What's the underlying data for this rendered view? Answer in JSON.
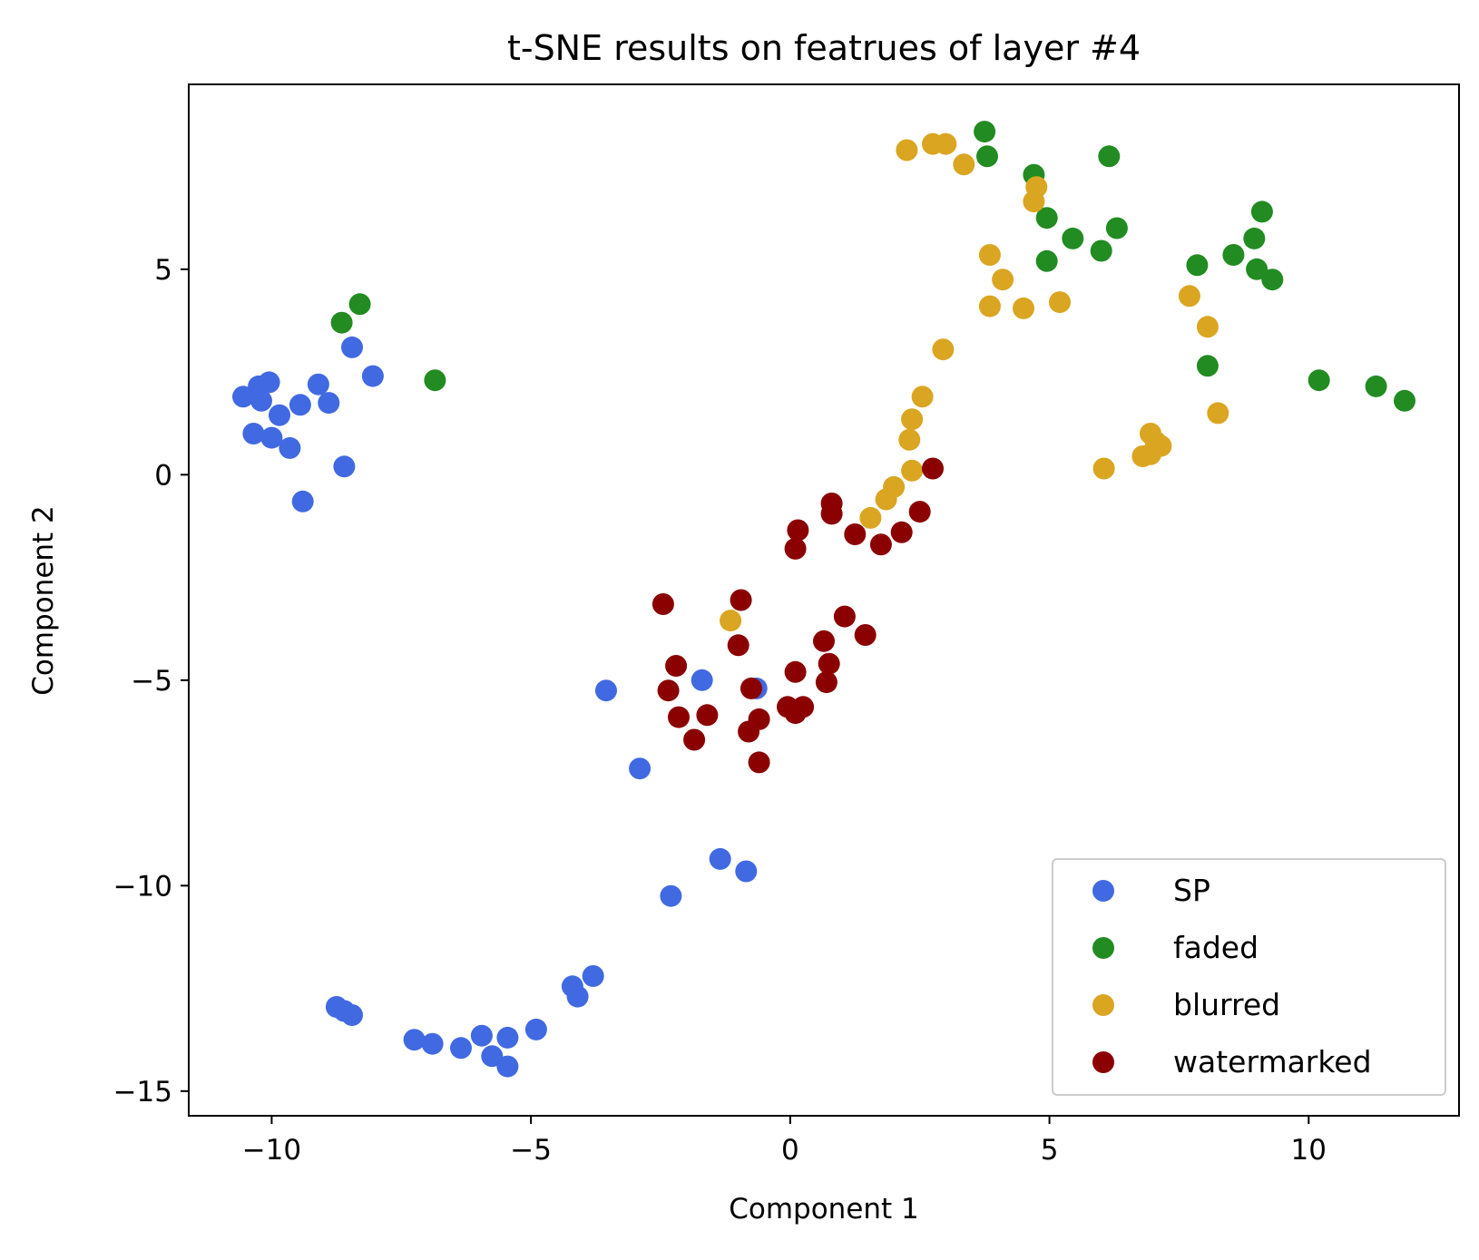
{
  "chart_data": {
    "type": "scatter",
    "title": "t-SNE results on featrues of layer #4",
    "xlabel": "Component 1",
    "ylabel": "Component 2",
    "xlim": [
      -11.6,
      12.9
    ],
    "ylim": [
      -15.6,
      9.5
    ],
    "xticks": [
      {
        "value": -10,
        "label": "−10"
      },
      {
        "value": -5,
        "label": "−5"
      },
      {
        "value": 0,
        "label": "0"
      },
      {
        "value": 5,
        "label": "5"
      },
      {
        "value": 10,
        "label": "10"
      }
    ],
    "yticks": [
      {
        "value": 5,
        "label": "5"
      },
      {
        "value": 0,
        "label": "0"
      },
      {
        "value": -5,
        "label": "−5"
      },
      {
        "value": -10,
        "label": "−10"
      },
      {
        "value": -15,
        "label": "−15"
      }
    ],
    "grid": false,
    "legend_position": "bottom-right",
    "series": [
      {
        "name": "SP",
        "color": "#4169E1",
        "points": [
          [
            -10.55,
            1.9
          ],
          [
            -10.25,
            2.15
          ],
          [
            -10.05,
            2.25
          ],
          [
            -10.2,
            1.8
          ],
          [
            -9.85,
            1.45
          ],
          [
            -9.45,
            1.7
          ],
          [
            -9.1,
            2.2
          ],
          [
            -8.9,
            1.75
          ],
          [
            -8.45,
            3.1
          ],
          [
            -8.05,
            2.4
          ],
          [
            -10.35,
            1.0
          ],
          [
            -10.0,
            0.9
          ],
          [
            -9.65,
            0.65
          ],
          [
            -8.6,
            0.2
          ],
          [
            -9.4,
            -0.65
          ],
          [
            -3.55,
            -5.25
          ],
          [
            -1.7,
            -5.0
          ],
          [
            -0.65,
            -5.2
          ],
          [
            -2.9,
            -7.15
          ],
          [
            -1.35,
            -9.35
          ],
          [
            -0.85,
            -9.65
          ],
          [
            -2.3,
            -10.25
          ],
          [
            -3.8,
            -12.2
          ],
          [
            -4.2,
            -12.45
          ],
          [
            -4.1,
            -12.7
          ],
          [
            -8.75,
            -12.95
          ],
          [
            -8.6,
            -13.05
          ],
          [
            -8.45,
            -13.15
          ],
          [
            -7.25,
            -13.75
          ],
          [
            -6.9,
            -13.85
          ],
          [
            -6.35,
            -13.95
          ],
          [
            -5.95,
            -13.65
          ],
          [
            -5.45,
            -13.7
          ],
          [
            -5.75,
            -14.15
          ],
          [
            -5.45,
            -14.4
          ],
          [
            -4.9,
            -13.5
          ]
        ]
      },
      {
        "name": "faded",
        "color": "#228B22",
        "points": [
          [
            -8.65,
            3.7
          ],
          [
            -8.3,
            4.15
          ],
          [
            -6.85,
            2.3
          ],
          [
            3.75,
            8.35
          ],
          [
            3.8,
            7.75
          ],
          [
            4.7,
            7.3
          ],
          [
            6.15,
            7.75
          ],
          [
            4.95,
            6.25
          ],
          [
            5.45,
            5.75
          ],
          [
            4.95,
            5.2
          ],
          [
            6.3,
            6.0
          ],
          [
            6.0,
            5.45
          ],
          [
            9.1,
            6.4
          ],
          [
            8.95,
            5.75
          ],
          [
            8.55,
            5.35
          ],
          [
            7.85,
            5.1
          ],
          [
            9.0,
            5.0
          ],
          [
            9.3,
            4.75
          ],
          [
            8.05,
            2.65
          ],
          [
            10.2,
            2.3
          ],
          [
            11.3,
            2.15
          ],
          [
            11.85,
            1.8
          ]
        ]
      },
      {
        "name": "blurred",
        "color": "#DAA520",
        "points": [
          [
            2.25,
            7.9
          ],
          [
            2.75,
            8.05
          ],
          [
            3.0,
            8.05
          ],
          [
            3.35,
            7.55
          ],
          [
            4.75,
            7.0
          ],
          [
            4.7,
            6.65
          ],
          [
            3.85,
            5.35
          ],
          [
            4.1,
            4.75
          ],
          [
            3.85,
            4.1
          ],
          [
            4.5,
            4.05
          ],
          [
            5.2,
            4.2
          ],
          [
            2.95,
            3.05
          ],
          [
            2.55,
            1.9
          ],
          [
            2.35,
            1.35
          ],
          [
            2.3,
            0.85
          ],
          [
            2.35,
            0.1
          ],
          [
            2.0,
            -0.3
          ],
          [
            1.85,
            -0.6
          ],
          [
            1.55,
            -1.05
          ],
          [
            -1.15,
            -3.55
          ],
          [
            7.7,
            4.35
          ],
          [
            8.05,
            3.6
          ],
          [
            8.25,
            1.5
          ],
          [
            6.95,
            1.0
          ],
          [
            7.05,
            0.8
          ],
          [
            7.15,
            0.7
          ],
          [
            6.95,
            0.5
          ],
          [
            6.8,
            0.45
          ],
          [
            6.05,
            0.15
          ]
        ]
      },
      {
        "name": "watermarked",
        "color": "#8B0000",
        "points": [
          [
            2.75,
            0.15
          ],
          [
            0.8,
            -0.7
          ],
          [
            0.8,
            -0.95
          ],
          [
            2.5,
            -0.9
          ],
          [
            0.15,
            -1.35
          ],
          [
            1.25,
            -1.45
          ],
          [
            2.15,
            -1.4
          ],
          [
            0.1,
            -1.8
          ],
          [
            1.75,
            -1.7
          ],
          [
            -2.45,
            -3.15
          ],
          [
            -0.95,
            -3.05
          ],
          [
            1.05,
            -3.45
          ],
          [
            1.45,
            -3.9
          ],
          [
            -1.0,
            -4.15
          ],
          [
            0.65,
            -4.05
          ],
          [
            0.75,
            -4.6
          ],
          [
            -2.2,
            -4.65
          ],
          [
            -2.35,
            -5.25
          ],
          [
            0.1,
            -4.8
          ],
          [
            -0.75,
            -5.2
          ],
          [
            0.7,
            -5.05
          ],
          [
            -2.15,
            -5.9
          ],
          [
            -1.6,
            -5.85
          ],
          [
            -0.6,
            -5.95
          ],
          [
            -0.05,
            -5.65
          ],
          [
            0.25,
            -5.65
          ],
          [
            0.1,
            -5.8
          ],
          [
            -0.8,
            -6.25
          ],
          [
            -1.85,
            -6.45
          ],
          [
            -0.6,
            -7.0
          ]
        ]
      }
    ]
  }
}
